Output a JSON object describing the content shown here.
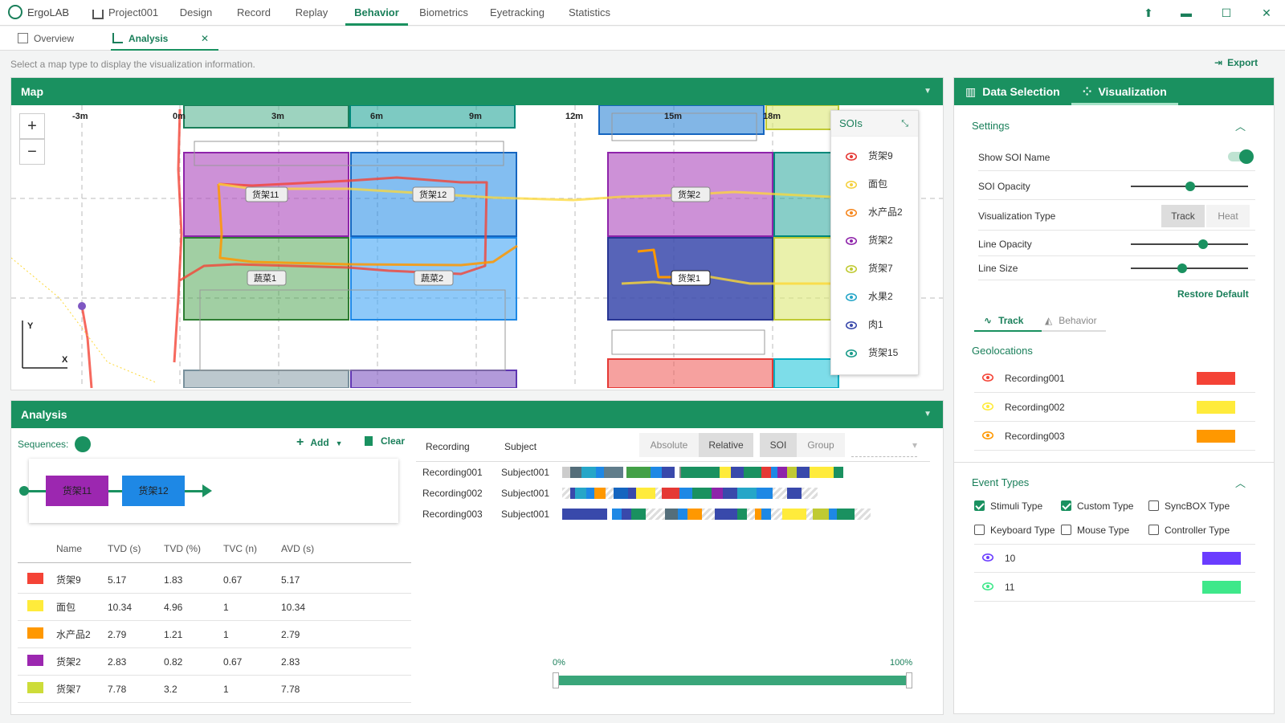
{
  "app": {
    "name": "ErgoLAB",
    "project": "Project001"
  },
  "nav": [
    "Design",
    "Record",
    "Replay",
    "Behavior",
    "Biometrics",
    "Eyetracking",
    "Statistics"
  ],
  "subtabs": {
    "overview": "Overview",
    "analysis": "Analysis"
  },
  "hint": "Select a map type to display the visualization information.",
  "export": "Export",
  "map": {
    "title": "Map",
    "axis_labels": [
      "-3m",
      "0m",
      "3m",
      "6m",
      "9m",
      "12m",
      "15m",
      "18m"
    ],
    "zoom_in": "+",
    "zoom_out": "−",
    "y_label": "Y",
    "x_label": "X",
    "soi_labels": [
      "货架11",
      "货架12",
      "货架2",
      "蔬菜1",
      "蔬菜2",
      "货架1"
    ],
    "soi_panel": {
      "title": "SOIs",
      "items": [
        {
          "name": "货架9",
          "color": "#e53935"
        },
        {
          "name": "面包",
          "color": "#f4d03f"
        },
        {
          "name": "水产品2",
          "color": "#f5871f"
        },
        {
          "name": "货架2",
          "color": "#8e24aa"
        },
        {
          "name": "货架7",
          "color": "#c0ca33"
        },
        {
          "name": "水果2",
          "color": "#26a6c8"
        },
        {
          "name": "肉1",
          "color": "#3949ab"
        },
        {
          "name": "货架15",
          "color": "#1a9b8a"
        }
      ]
    }
  },
  "analysis": {
    "title": "Analysis",
    "sequences": "Sequences:",
    "add": "Add",
    "clear": "Clear",
    "seq": [
      "货架11",
      "货架12"
    ],
    "columns": [
      "Name",
      "TVD (s)",
      "TVD (%)",
      "TVC (n)",
      "AVD (s)"
    ],
    "rows": [
      {
        "color": "#f44336",
        "name": "货架9",
        "tvd_s": "5.17",
        "tvd_p": "1.83",
        "tvc": "0.67",
        "avd": "5.17"
      },
      {
        "color": "#ffeb3b",
        "name": "面包",
        "tvd_s": "10.34",
        "tvd_p": "4.96",
        "tvc": "1",
        "avd": "10.34"
      },
      {
        "color": "#ff9800",
        "name": "水产品2",
        "tvd_s": "2.79",
        "tvd_p": "1.21",
        "tvc": "1",
        "avd": "2.79"
      },
      {
        "color": "#9c27b0",
        "name": "货架2",
        "tvd_s": "2.83",
        "tvd_p": "0.82",
        "tvc": "0.67",
        "avd": "2.83"
      },
      {
        "color": "#cddc39",
        "name": "货架7",
        "tvd_s": "7.78",
        "tvd_p": "3.2",
        "tvc": "1",
        "avd": "7.78"
      }
    ],
    "rec_cols": {
      "recording": "Recording",
      "subject": "Subject"
    },
    "buttons": {
      "absolute": "Absolute",
      "relative": "Relative",
      "soi": "SOI",
      "group": "Group"
    },
    "recordings": [
      {
        "rec": "Recording001",
        "subj": "Subject001"
      },
      {
        "rec": "Recording002",
        "subj": "Subject001"
      },
      {
        "rec": "Recording003",
        "subj": "Subject001"
      }
    ],
    "range": {
      "min": "0%",
      "max": "100%"
    }
  },
  "right": {
    "tab1": "Data Selection",
    "tab2": "Visualization",
    "settings": {
      "title": "Settings",
      "show_soi_name": "Show SOI Name",
      "soi_opacity": "SOI Opacity",
      "vis_type": "Visualization Type",
      "track": "Track",
      "heat": "Heat",
      "line_opacity": "Line Opacity",
      "line_size": "Line Size",
      "restore": "Restore Default",
      "soi_opacity_value": 0.5,
      "line_opacity_value": 0.6,
      "line_size_value": 0.45
    },
    "subtab_track": "Track",
    "subtab_behavior": "Behavior",
    "geolocations": "Geolocations",
    "geo": [
      {
        "name": "Recording001",
        "color": "#f44336"
      },
      {
        "name": "Recording002",
        "color": "#ffeb3b"
      },
      {
        "name": "Recording003",
        "color": "#ff9800"
      }
    ],
    "event_types": "Event Types",
    "events": {
      "stimuli": "Stimuli Type",
      "custom": "Custom Type",
      "syncbox": "SyncBOX Type",
      "keyboard": "Keyboard Type",
      "mouse": "Mouse Type",
      "controller": "Controller Type"
    },
    "event_items": [
      {
        "name": "10",
        "color": "#6a3cff"
      },
      {
        "name": "11",
        "color": "#3ee88a"
      }
    ]
  }
}
